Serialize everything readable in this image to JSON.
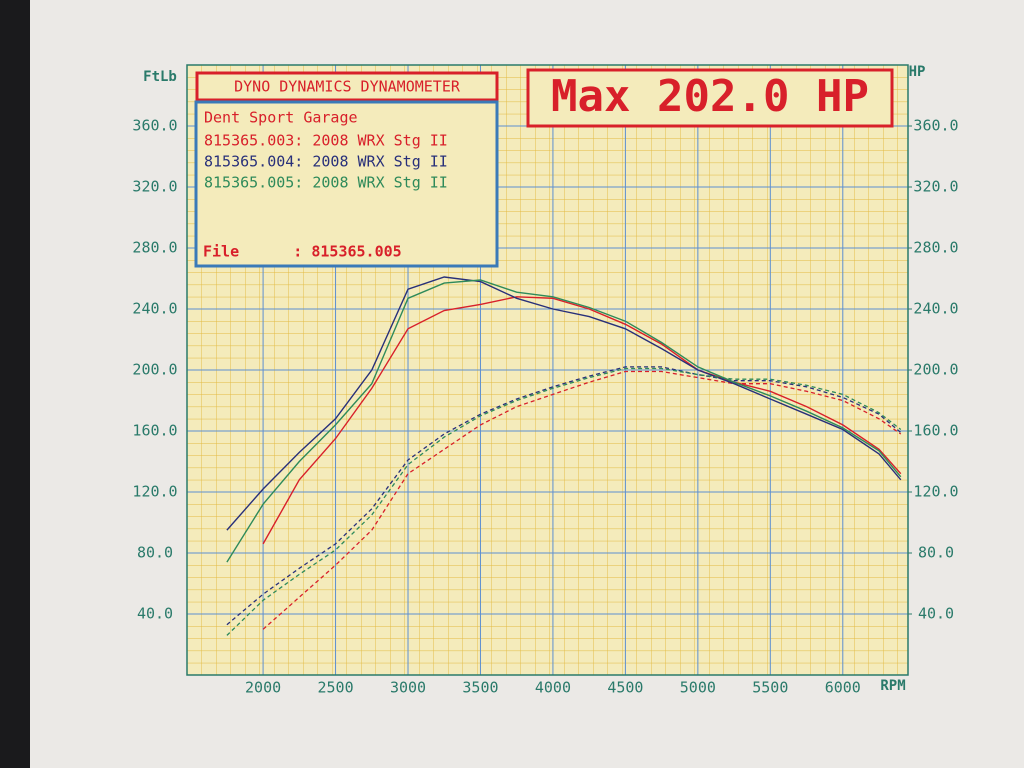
{
  "chart_data": {
    "type": "line",
    "title": "DYNO DYNAMICS DYNAMOMETER",
    "headline": "Max 202.0 HP",
    "subtitle": "Dent Sport Garage",
    "file_label": "File      : 815365.005",
    "x_label": "RPM",
    "y_label": "FtLb",
    "y2_label": "HP",
    "x": [
      1750,
      2000,
      2250,
      2500,
      2750,
      3000,
      3250,
      3500,
      3750,
      4000,
      4250,
      4500,
      4750,
      5000,
      5250,
      5500,
      5750,
      6000,
      6250,
      6400
    ],
    "xlim": [
      1475,
      6450
    ],
    "xticks": [
      2000,
      2500,
      3000,
      3500,
      4000,
      4500,
      5000,
      5500,
      6000
    ],
    "ylim": [
      0,
      400
    ],
    "yticks": [
      {
        "value": 40,
        "label": "40.0"
      },
      {
        "value": 80,
        "label": "80.0"
      },
      {
        "value": 120,
        "label": "120.0"
      },
      {
        "value": 160,
        "label": "160.0"
      },
      {
        "value": 200,
        "label": "200.0"
      },
      {
        "value": 240,
        "label": "240.0"
      },
      {
        "value": 280,
        "label": "280.0"
      },
      {
        "value": 320,
        "label": "320.0"
      },
      {
        "value": 360,
        "label": "360.0"
      }
    ],
    "y2lim": [
      0,
      400
    ],
    "y2ticks": [
      {
        "value": 40,
        "label": "40.0"
      },
      {
        "value": 80,
        "label": "80.0"
      },
      {
        "value": 120,
        "label": "120.0"
      },
      {
        "value": 160,
        "label": "160.0"
      },
      {
        "value": 200,
        "label": "200.0"
      },
      {
        "value": 240,
        "label": "240.0"
      },
      {
        "value": 280,
        "label": "280.0"
      },
      {
        "value": 320,
        "label": "320.0"
      },
      {
        "value": 360,
        "label": "360.0"
      }
    ],
    "grid": true,
    "series": [
      {
        "name": "815365.003: 2008 WRX Stg II",
        "color": "#d8202a",
        "values": [
          null,
          86,
          128,
          155,
          188,
          227,
          239,
          243,
          248,
          247,
          240,
          230,
          217,
          200,
          192,
          186,
          176,
          164,
          148,
          132
        ],
        "y2_values": [
          null,
          30,
          51,
          72,
          95,
          132,
          148,
          164,
          176,
          184,
          192,
          199,
          199,
          195,
          191,
          191,
          186,
          180,
          168,
          158
        ]
      },
      {
        "name": "815365.004: 2008 WRX Stg II",
        "color": "#28307a",
        "values": [
          95,
          122,
          146,
          168,
          200,
          253,
          261,
          258,
          247,
          240,
          235,
          227,
          214,
          200,
          191,
          181,
          171,
          161,
          145,
          128
        ],
        "y2_values": [
          33,
          53,
          70,
          86,
          109,
          141,
          158,
          171,
          181,
          189,
          196,
          202,
          202,
          197,
          193,
          193,
          189,
          182,
          171,
          159
        ]
      },
      {
        "name": "815365.005: 2008 WRX Stg II",
        "color": "#2e8a5a",
        "values": [
          74,
          112,
          140,
          164,
          191,
          247,
          257,
          259,
          251,
          248,
          241,
          232,
          218,
          202,
          192,
          183,
          173,
          162,
          147,
          130
        ],
        "y2_values": [
          26,
          49,
          66,
          82,
          105,
          138,
          156,
          170,
          180,
          188,
          195,
          201,
          201,
          197,
          194,
          194,
          190,
          184,
          172,
          161
        ]
      }
    ]
  }
}
